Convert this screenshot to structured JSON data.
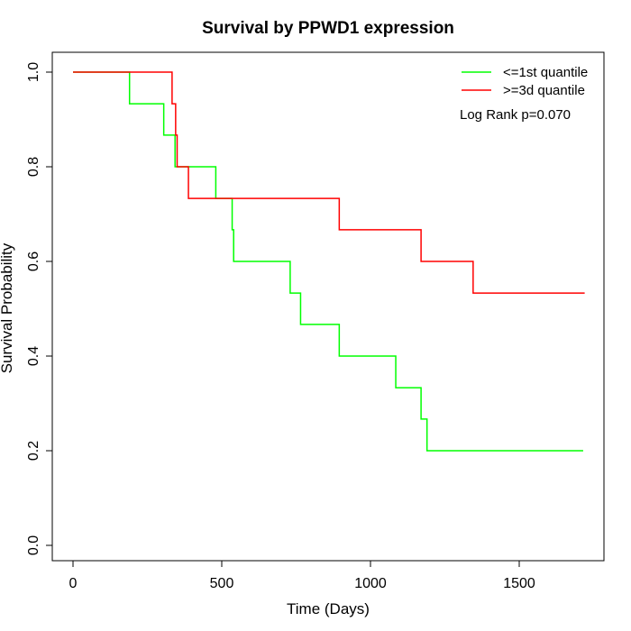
{
  "chart_data": {
    "type": "line",
    "subtype": "step",
    "title": "Survival by PPWD1 expression",
    "xlabel": "Time (Days)",
    "ylabel": "Survival Probability",
    "xlim": [
      0,
      1780
    ],
    "ylim": [
      0,
      1.0
    ],
    "x_ticks": [
      0,
      500,
      1000,
      1500
    ],
    "y_ticks": [
      0.0,
      0.2,
      0.4,
      0.6,
      0.8,
      1.0
    ],
    "x_tick_labels": [
      "0",
      "500",
      "1000",
      "1500"
    ],
    "y_tick_labels": [
      "0.0",
      "0.2",
      "0.4",
      "0.6",
      "0.8",
      "1.0"
    ],
    "grid": false,
    "legend_position": "top-right",
    "annotation": "Log Rank p=0.070",
    "series": [
      {
        "name": "<=1st quantile",
        "color": "#00ff00",
        "steps": [
          [
            0,
            1.0
          ],
          [
            190,
            0.933
          ],
          [
            305,
            0.867
          ],
          [
            343,
            0.8
          ],
          [
            480,
            0.733
          ],
          [
            535,
            0.667
          ],
          [
            540,
            0.6
          ],
          [
            730,
            0.533
          ],
          [
            765,
            0.467
          ],
          [
            895,
            0.4
          ],
          [
            1085,
            0.333
          ],
          [
            1170,
            0.267
          ],
          [
            1190,
            0.2
          ]
        ],
        "end_x": 1715
      },
      {
        "name": ">=3d quantile",
        "color": "#ff0000",
        "steps": [
          [
            0,
            1.0
          ],
          [
            333,
            0.933
          ],
          [
            345,
            0.867
          ],
          [
            350,
            0.8
          ],
          [
            388,
            0.733
          ],
          [
            895,
            0.667
          ],
          [
            1170,
            0.6
          ],
          [
            1345,
            0.533
          ]
        ],
        "end_x": 1720
      }
    ]
  }
}
